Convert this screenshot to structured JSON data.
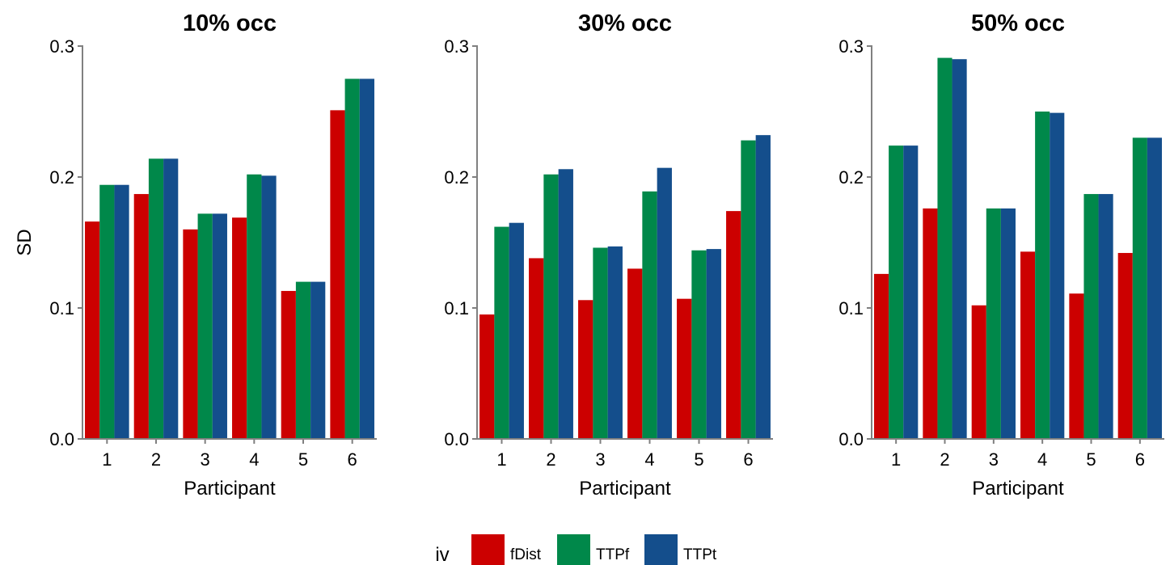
{
  "colors": {
    "fDist": "#cc0000",
    "TTPf": "#00884a",
    "TTPt": "#144e8c",
    "axis": "#808080"
  },
  "chart_data": [
    {
      "type": "bar",
      "title": "10% occ",
      "xlabel": "Participant",
      "ylabel": "SD",
      "ylim": [
        0,
        0.3
      ],
      "yticks": [
        "0.0",
        "0.1",
        "0.2",
        "0.3"
      ],
      "categories": [
        "1",
        "2",
        "3",
        "4",
        "5",
        "6"
      ],
      "series": [
        {
          "name": "fDist",
          "values": [
            0.166,
            0.187,
            0.16,
            0.169,
            0.113,
            0.251
          ]
        },
        {
          "name": "TTPf",
          "values": [
            0.194,
            0.214,
            0.172,
            0.202,
            0.12,
            0.275
          ]
        },
        {
          "name": "TTPt",
          "values": [
            0.194,
            0.214,
            0.172,
            0.201,
            0.12,
            0.275
          ]
        }
      ]
    },
    {
      "type": "bar",
      "title": "30% occ",
      "xlabel": "Participant",
      "ylabel": "",
      "ylim": [
        0,
        0.3
      ],
      "yticks": [
        "0.0",
        "0.1",
        "0.2",
        "0.3"
      ],
      "categories": [
        "1",
        "2",
        "3",
        "4",
        "5",
        "6"
      ],
      "series": [
        {
          "name": "fDist",
          "values": [
            0.095,
            0.138,
            0.106,
            0.13,
            0.107,
            0.174
          ]
        },
        {
          "name": "TTPf",
          "values": [
            0.162,
            0.202,
            0.146,
            0.189,
            0.144,
            0.228
          ]
        },
        {
          "name": "TTPt",
          "values": [
            0.165,
            0.206,
            0.147,
            0.207,
            0.145,
            0.232
          ]
        }
      ]
    },
    {
      "type": "bar",
      "title": "50% occ",
      "xlabel": "Participant",
      "ylabel": "",
      "ylim": [
        0,
        0.3
      ],
      "yticks": [
        "0.0",
        "0.1",
        "0.2",
        "0.3"
      ],
      "categories": [
        "1",
        "2",
        "3",
        "4",
        "5",
        "6"
      ],
      "series": [
        {
          "name": "fDist",
          "values": [
            0.126,
            0.176,
            0.102,
            0.143,
            0.111,
            0.142
          ]
        },
        {
          "name": "TTPf",
          "values": [
            0.224,
            0.291,
            0.176,
            0.25,
            0.187,
            0.23
          ]
        },
        {
          "name": "TTPt",
          "values": [
            0.224,
            0.29,
            0.176,
            0.249,
            0.187,
            0.23
          ]
        }
      ]
    }
  ],
  "legend": {
    "title": "iv",
    "position": "bottom",
    "items": [
      "fDist",
      "TTPf",
      "TTPt"
    ]
  }
}
